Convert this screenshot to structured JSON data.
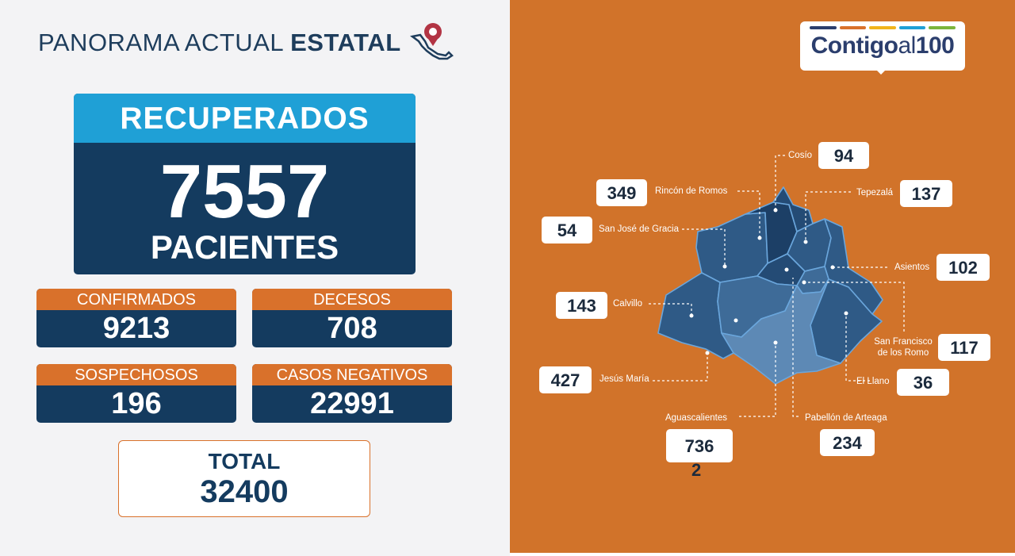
{
  "header": {
    "title_light": "PANORAMA ACTUAL",
    "title_bold": "ESTATAL",
    "icon": "mexico-map-pin-icon"
  },
  "recuperados": {
    "label": "RECUPERADOS",
    "value": "7557",
    "unit": "PACIENTES"
  },
  "stats": [
    {
      "label": "CONFIRMADOS",
      "value": "9213"
    },
    {
      "label": "DECESOS",
      "value": "708"
    },
    {
      "label": "SOSPECHOSOS",
      "value": "196"
    },
    {
      "label": "CASOS NEGATIVOS",
      "value": "22991"
    }
  ],
  "total": {
    "label": "TOTAL",
    "value": "32400"
  },
  "logo": {
    "part1": "Contigo",
    "part2": "al",
    "part3": "100",
    "bar_colors": [
      "#2b3e6d",
      "#d9712b",
      "#f1b41b",
      "#1fa0d6",
      "#7bb53c"
    ]
  },
  "colors": {
    "navy": "#143b5f",
    "blue": "#1fa0d6",
    "orange": "#d1732a",
    "map_dark": "#1c3f66",
    "map_mid": "#2f5a86",
    "map_light": "#5d89b5"
  },
  "municipios": [
    {
      "name": "Cosío",
      "value": "94"
    },
    {
      "name": "Rincón de Romos",
      "value": "349"
    },
    {
      "name": "Tepezalá",
      "value": "137"
    },
    {
      "name": "San José de Gracia",
      "value": "54"
    },
    {
      "name": "Asientos",
      "value": "102"
    },
    {
      "name": "Calvillo",
      "value": "143"
    },
    {
      "name": "San Francisco de los Romo",
      "value": "117"
    },
    {
      "name": "Jesús María",
      "value": "427"
    },
    {
      "name": "El Llano",
      "value": "36"
    },
    {
      "name": "Aguascalientes",
      "value": "736",
      "value_extra": "2"
    },
    {
      "name": "Pabellón de Arteaga",
      "value": "234"
    }
  ]
}
